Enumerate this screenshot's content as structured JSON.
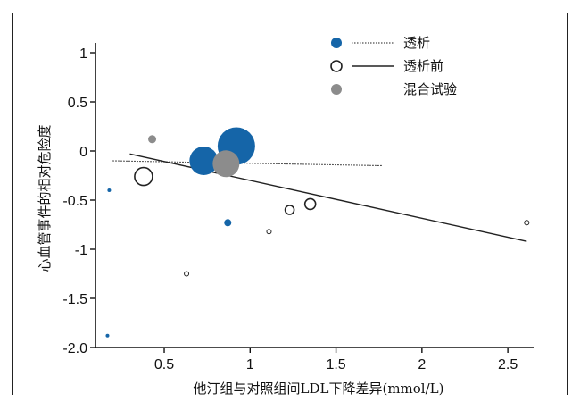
{
  "chart_data": {
    "type": "scatter",
    "title": "",
    "xlabel": "他汀组与对照组间LDL下降差异(mmol/L)",
    "ylabel": "心血管事件的相对危险度",
    "xlim": [
      0.1,
      2.65
    ],
    "ylim": [
      -2.0,
      1.1
    ],
    "x_ticks": [
      {
        "value": 0.5,
        "label": "0.5"
      },
      {
        "value": 1.0,
        "label": "1"
      },
      {
        "value": 1.5,
        "label": "1.5"
      },
      {
        "value": 2.0,
        "label": "2"
      },
      {
        "value": 2.5,
        "label": "2.5"
      }
    ],
    "y_ticks": [
      {
        "value": 1.0,
        "label": "1"
      },
      {
        "value": 0.5,
        "label": "0.5"
      },
      {
        "value": 0.0,
        "label": "0"
      },
      {
        "value": -0.5,
        "label": "-0.5"
      },
      {
        "value": -1.0,
        "label": "-1"
      },
      {
        "value": -1.5,
        "label": "-1.5"
      },
      {
        "value": -2.0,
        "label": "-2.0"
      }
    ],
    "grid": false,
    "legend": {
      "position": "top-right",
      "entries": [
        {
          "name": "透析",
          "marker": "filled",
          "color": "#1565a8",
          "line": "dotted"
        },
        {
          "name": "透析前",
          "marker": "open",
          "color": "#222222",
          "line": "solid"
        },
        {
          "name": "混合试验",
          "marker": "filled",
          "color": "#8c8c8c",
          "line": "none"
        }
      ]
    },
    "series": [
      {
        "name": "透析",
        "color": "#1565a8",
        "fill": "filled",
        "points": [
          {
            "x": 0.92,
            "y": 0.05,
            "size": 21
          },
          {
            "x": 0.73,
            "y": -0.1,
            "size": 16
          },
          {
            "x": 0.87,
            "y": -0.73,
            "size": 4
          },
          {
            "x": 0.18,
            "y": -0.4,
            "size": 2
          },
          {
            "x": 0.17,
            "y": -1.88,
            "size": 2
          }
        ]
      },
      {
        "name": "透析前",
        "color": "#222222",
        "fill": "open",
        "points": [
          {
            "x": 0.38,
            "y": -0.26,
            "size": 10
          },
          {
            "x": 1.35,
            "y": -0.54,
            "size": 6
          },
          {
            "x": 1.23,
            "y": -0.6,
            "size": 5
          },
          {
            "x": 1.11,
            "y": -0.82,
            "size": 2.5
          },
          {
            "x": 0.63,
            "y": -1.25,
            "size": 2.5
          },
          {
            "x": 2.61,
            "y": -0.73,
            "size": 2.5
          }
        ]
      },
      {
        "name": "混合试验",
        "color": "#8c8c8c",
        "fill": "filled",
        "points": [
          {
            "x": 0.43,
            "y": 0.12,
            "size": 4.5
          },
          {
            "x": 0.86,
            "y": -0.13,
            "size": 15
          }
        ]
      }
    ],
    "regression_lines": [
      {
        "series": "透析",
        "style": "dotted",
        "x1": 0.2,
        "y1": -0.1,
        "x2": 1.77,
        "y2": -0.15
      },
      {
        "series": "透析前",
        "style": "solid",
        "x1": 0.3,
        "y1": -0.03,
        "x2": 2.61,
        "y2": -0.92
      }
    ]
  }
}
